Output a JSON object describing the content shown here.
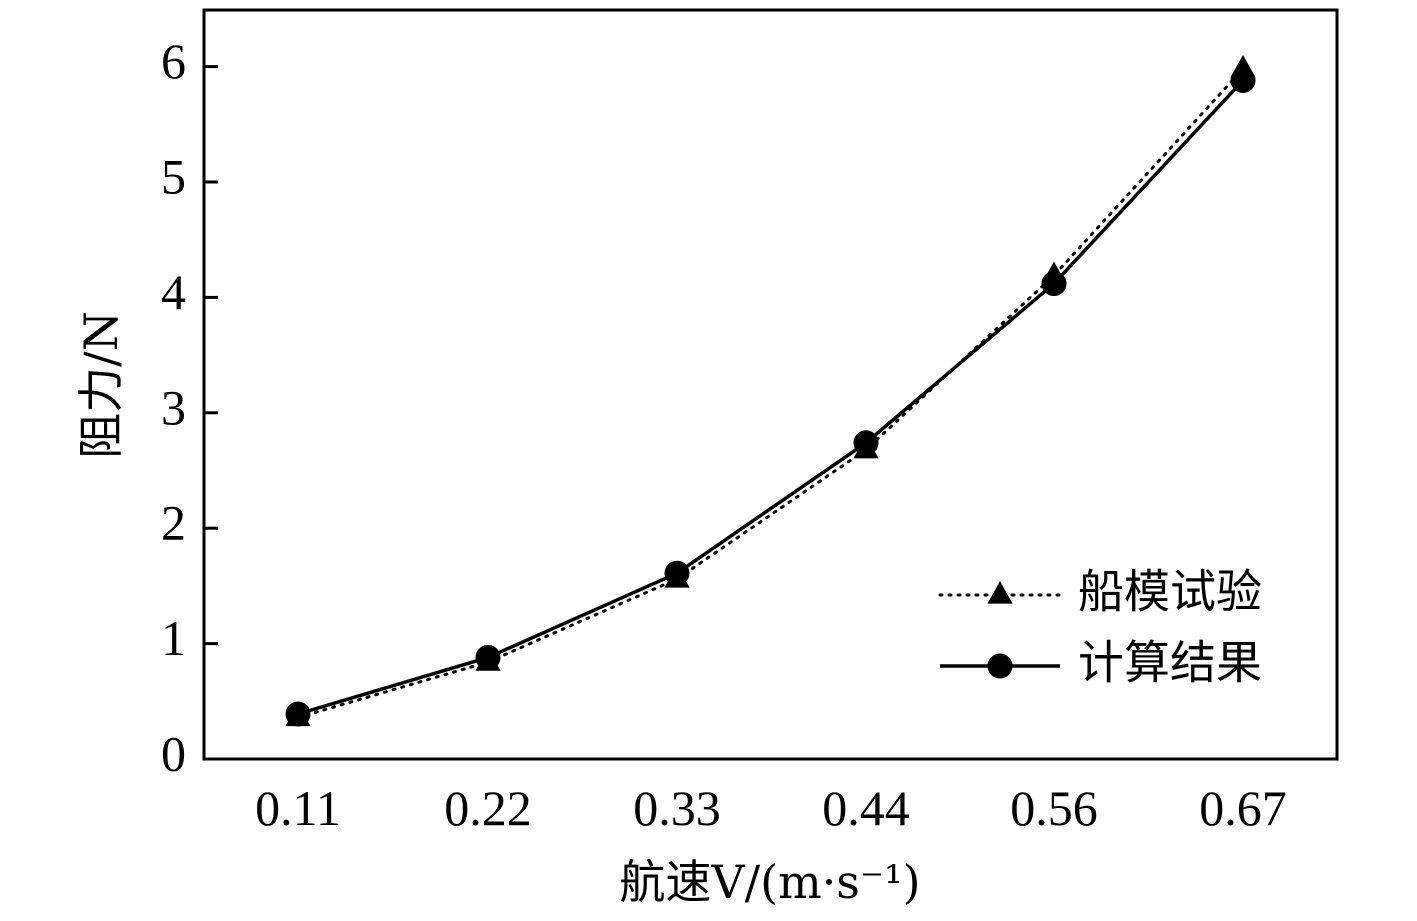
{
  "chart_data": {
    "type": "line",
    "x_categories": [
      "0.11",
      "0.22",
      "0.33",
      "0.44",
      "0.56",
      "0.67"
    ],
    "x": [
      0.11,
      0.22,
      0.33,
      0.44,
      0.56,
      0.67
    ],
    "xlabel": "航速V/(m·s⁻¹)",
    "ylabel": "阻力/N",
    "ylim": [
      0,
      6.5
    ],
    "yticks": [
      "0",
      "1",
      "2",
      "3",
      "4",
      "5",
      "6"
    ],
    "grid": false,
    "legend_position": "bottom-right",
    "series": [
      {
        "name": "船模试验",
        "marker": "triangle",
        "line_style": "dotted",
        "values": [
          0.36,
          0.84,
          1.56,
          2.68,
          4.19,
          5.98
        ]
      },
      {
        "name": "计算结果",
        "marker": "circle",
        "line_style": "solid",
        "values": [
          0.39,
          0.88,
          1.61,
          2.74,
          4.12,
          5.88
        ]
      }
    ],
    "colors": {
      "line": "#000000",
      "background": "#ffffff"
    }
  }
}
